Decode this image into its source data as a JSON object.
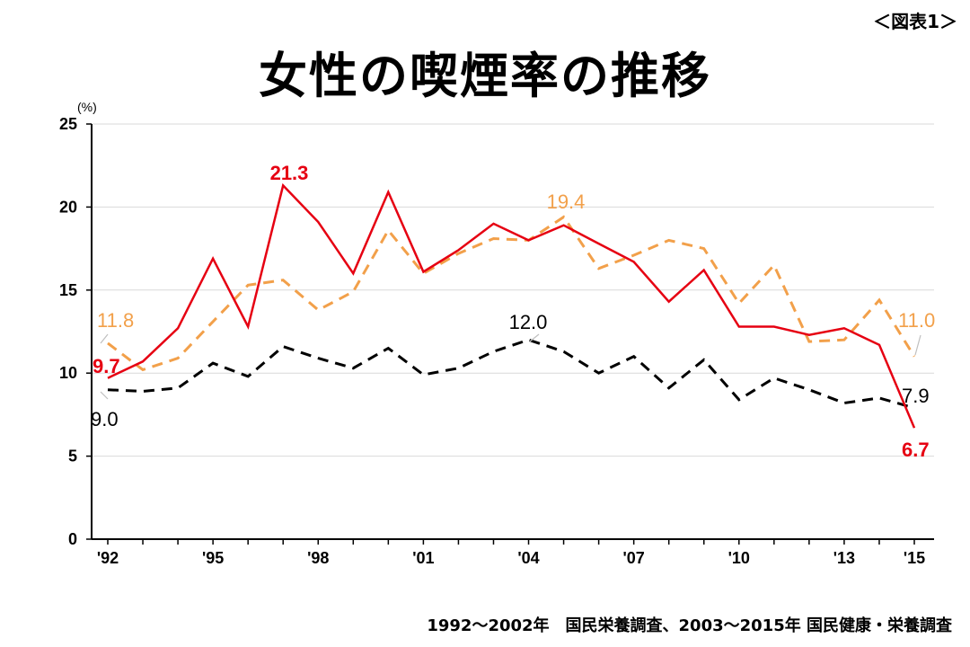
{
  "figure_label": "＜図表1＞",
  "title": "女性の喫煙率の推移",
  "source": "1992〜2002年　国民栄養調査、2003〜2015年 国民健康・栄養調査",
  "colors": {
    "red": "#e60012",
    "orange": "#f2a04a",
    "black": "#000000",
    "grid": "#d9d9d9"
  },
  "chart_data": {
    "type": "line",
    "ylabel": "(%)",
    "ylim": [
      0,
      25
    ],
    "yticks": [
      0,
      5,
      10,
      15,
      20,
      25
    ],
    "x": [
      1992,
      1993,
      1994,
      1995,
      1996,
      1997,
      1998,
      1999,
      2000,
      2001,
      2002,
      2003,
      2004,
      2005,
      2006,
      2007,
      2008,
      2009,
      2010,
      2011,
      2012,
      2013,
      2014,
      2015
    ],
    "xtick_values": [
      1992,
      1995,
      1998,
      2001,
      2004,
      2007,
      2010,
      2013,
      2015
    ],
    "xtick_labels": [
      "'92",
      "'95",
      "'98",
      "'01",
      "'04",
      "'07",
      "'10",
      "'13",
      "'15"
    ],
    "grid": true,
    "series": [
      {
        "style": "solid",
        "color": "#e60012",
        "values": [
          9.7,
          10.7,
          12.7,
          16.9,
          12.8,
          21.3,
          19.1,
          16.0,
          20.9,
          16.1,
          17.4,
          19.0,
          18.0,
          18.9,
          17.8,
          16.7,
          14.3,
          16.2,
          12.8,
          12.8,
          12.3,
          12.7,
          11.7,
          6.7
        ]
      },
      {
        "style": "dashed",
        "color": "#f2a04a",
        "values": [
          11.8,
          10.2,
          10.9,
          13.1,
          15.3,
          15.6,
          13.8,
          14.9,
          18.6,
          16.0,
          17.2,
          18.1,
          18.0,
          19.4,
          16.3,
          17.1,
          18.0,
          17.5,
          14.2,
          16.5,
          11.9,
          12.0,
          14.4,
          11.0
        ]
      },
      {
        "style": "dashed",
        "color": "#000000",
        "values": [
          9.0,
          8.9,
          9.1,
          10.6,
          9.8,
          11.6,
          10.9,
          10.3,
          11.5,
          9.9,
          10.3,
          11.3,
          12.0,
          11.3,
          10.0,
          11.0,
          9.1,
          10.8,
          8.4,
          9.7,
          9.0,
          8.2,
          8.5,
          7.9
        ]
      }
    ],
    "annotations": [
      {
        "text": "21.3",
        "color": "#e60012",
        "bold": true
      },
      {
        "text": "9.7",
        "color": "#e60012",
        "bold": true
      },
      {
        "text": "6.7",
        "color": "#e60012",
        "bold": true
      },
      {
        "text": "11.8",
        "color": "#f2a04a",
        "bold": false
      },
      {
        "text": "19.4",
        "color": "#f2a04a",
        "bold": false
      },
      {
        "text": "11.0",
        "color": "#f2a04a",
        "bold": false
      },
      {
        "text": "12.0",
        "color": "#000000",
        "bold": false
      },
      {
        "text": "9.0",
        "color": "#000000",
        "bold": false
      },
      {
        "text": "7.9",
        "color": "#000000",
        "bold": false
      }
    ]
  }
}
